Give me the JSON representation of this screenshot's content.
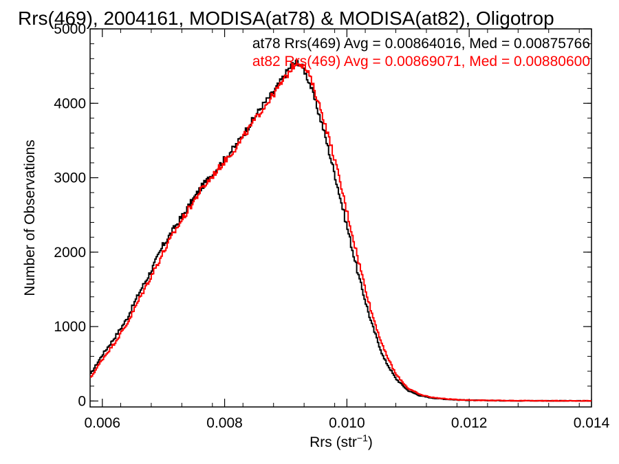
{
  "chart_data": {
    "type": "line",
    "title": "Rrs(469), 2004161, MODISA(at78) & MODISA(at82), Oligotrop",
    "xlabel": "Rrs (str",
    "xlabel_sup": "−1",
    "xlabel_close": ")",
    "ylabel": "Number of Observations",
    "xlim": [
      0.0058,
      0.014
    ],
    "ylim": [
      -80,
      5000
    ],
    "xticks": [
      0.006,
      0.008,
      0.01,
      0.012,
      0.014
    ],
    "xtick_labels": [
      "0.006",
      "0.008",
      "0.010",
      "0.012",
      "0.014"
    ],
    "yticks": [
      0,
      1000,
      2000,
      3000,
      4000,
      5000
    ],
    "ytick_labels": [
      "0",
      "1000",
      "2000",
      "3000",
      "4000",
      "5000"
    ],
    "legend_placement": "top-right",
    "series": [
      {
        "name": "at78",
        "color": "#000000",
        "annotation": "at78 Rrs(469) Avg = 0.00864016, Med = 0.00875766",
        "x": [
          0.0058,
          0.006,
          0.0062,
          0.0064,
          0.0066,
          0.0068,
          0.007,
          0.0072,
          0.0074,
          0.0076,
          0.0078,
          0.008,
          0.0082,
          0.0084,
          0.0086,
          0.0088,
          0.009,
          0.0091,
          0.0092,
          0.0093,
          0.0094,
          0.0096,
          0.0098,
          0.01,
          0.0102,
          0.0104,
          0.0106,
          0.0108,
          0.011,
          0.0112,
          0.0114,
          0.0116,
          0.0118,
          0.012,
          0.0125,
          0.013,
          0.0135,
          0.014
        ],
        "y": [
          350,
          620,
          850,
          1100,
          1450,
          1750,
          2100,
          2350,
          2600,
          2850,
          3050,
          3250,
          3450,
          3700,
          3950,
          4150,
          4400,
          4520,
          4560,
          4450,
          4250,
          3700,
          3050,
          2350,
          1650,
          1050,
          580,
          300,
          140,
          70,
          40,
          25,
          15,
          10,
          5,
          3,
          2,
          1
        ]
      },
      {
        "name": "at82",
        "color": "#ff0000",
        "annotation": "at82 Rrs(469) Avg = 0.00869071, Med = 0.00880600",
        "x": [
          0.0058,
          0.006,
          0.0062,
          0.0064,
          0.0066,
          0.0068,
          0.007,
          0.0072,
          0.0074,
          0.0076,
          0.0078,
          0.008,
          0.0082,
          0.0084,
          0.0086,
          0.0088,
          0.009,
          0.0091,
          0.0092,
          0.0093,
          0.0094,
          0.0096,
          0.0098,
          0.01,
          0.0102,
          0.0104,
          0.0106,
          0.0108,
          0.011,
          0.0112,
          0.0114,
          0.0116,
          0.0118,
          0.012,
          0.0125,
          0.013,
          0.0135,
          0.014
        ],
        "y": [
          300,
          560,
          780,
          1030,
          1360,
          1680,
          2000,
          2300,
          2560,
          2820,
          3020,
          3220,
          3420,
          3660,
          3900,
          4120,
          4350,
          4480,
          4560,
          4500,
          4350,
          3850,
          3250,
          2550,
          1850,
          1200,
          700,
          360,
          170,
          85,
          48,
          30,
          18,
          12,
          6,
          3,
          2,
          1
        ]
      }
    ]
  }
}
